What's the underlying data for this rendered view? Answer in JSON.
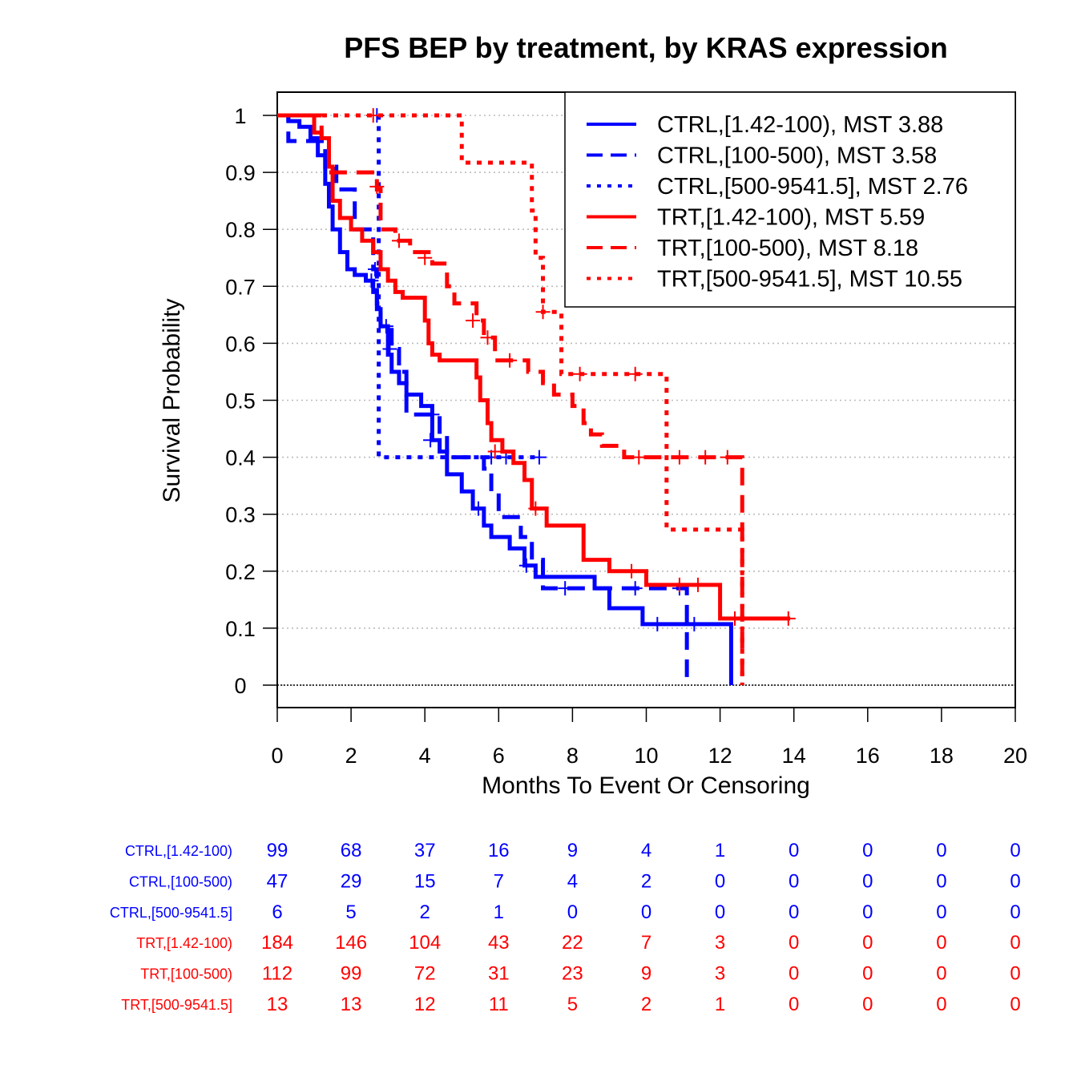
{
  "chart_data": {
    "type": "line",
    "subtype": "kaplan-meier",
    "title": "PFS BEP by treatment, by KRAS expression",
    "xlabel": "Months To Event Or Censoring",
    "ylabel": "Survival Probability",
    "xlim": [
      0,
      20
    ],
    "ylim": [
      0,
      1
    ],
    "x_ticks": [
      0,
      2,
      4,
      6,
      8,
      10,
      12,
      14,
      16,
      18,
      20
    ],
    "y_ticks": [
      0,
      0.1,
      0.2,
      0.3,
      0.4,
      0.5,
      0.6,
      0.7,
      0.8,
      0.9,
      1
    ],
    "y_tick_labels": [
      "0",
      "0.1",
      "0.2",
      "0.3",
      "0.4",
      "0.5",
      "0.6",
      "0.7",
      "0.8",
      "0.9",
      "1"
    ],
    "grid": "horizontal dotted",
    "legend_position": "top-right",
    "colors": {
      "ctrl": "#0000ff",
      "trt": "#ff0000",
      "grid": "#bbbbbb"
    },
    "series": [
      {
        "name": "CTRL,[1.42-100), MST 3.88",
        "risk_label": "CTRL,[1.42-100)",
        "color": "#0000ff",
        "dash": "solid",
        "steps": [
          [
            0,
            1
          ],
          [
            0.3,
            0.99
          ],
          [
            0.6,
            0.98
          ],
          [
            0.9,
            0.96
          ],
          [
            1.1,
            0.93
          ],
          [
            1.3,
            0.88
          ],
          [
            1.4,
            0.84
          ],
          [
            1.5,
            0.8
          ],
          [
            1.7,
            0.76
          ],
          [
            1.9,
            0.73
          ],
          [
            2.1,
            0.72
          ],
          [
            2.4,
            0.71
          ],
          [
            2.6,
            0.69
          ],
          [
            2.7,
            0.66
          ],
          [
            2.8,
            0.63
          ],
          [
            3.0,
            0.58
          ],
          [
            3.1,
            0.55
          ],
          [
            3.3,
            0.53
          ],
          [
            3.5,
            0.51
          ],
          [
            3.9,
            0.49
          ],
          [
            4.2,
            0.43
          ],
          [
            4.4,
            0.41
          ],
          [
            4.6,
            0.37
          ],
          [
            5.0,
            0.34
          ],
          [
            5.3,
            0.31
          ],
          [
            5.6,
            0.28
          ],
          [
            5.8,
            0.26
          ],
          [
            6.3,
            0.24
          ],
          [
            6.7,
            0.21
          ],
          [
            7.0,
            0.19
          ],
          [
            8.6,
            0.17
          ],
          [
            9.0,
            0.135
          ],
          [
            9.9,
            0.107
          ],
          [
            12.3,
            0
          ]
        ],
        "end": 12.3,
        "censors": [
          [
            2.55,
            0.71
          ],
          [
            2.95,
            0.63
          ],
          [
            4.15,
            0.43
          ],
          [
            5.45,
            0.31
          ],
          [
            6.75,
            0.21
          ],
          [
            9.7,
            0.17
          ],
          [
            10.3,
            0.107
          ],
          [
            11.3,
            0.107
          ]
        ]
      },
      {
        "name": "CTRL,[100-500), MST 3.58",
        "risk_label": "CTRL,[100-500)",
        "color": "#0000ff",
        "dash": "dashed",
        "steps": [
          [
            0,
            1
          ],
          [
            0.3,
            0.955
          ],
          [
            0.9,
            0.955
          ],
          [
            1.3,
            0.91
          ],
          [
            1.6,
            0.87
          ],
          [
            2.1,
            0.8
          ],
          [
            2.6,
            0.73
          ],
          [
            2.7,
            0.67
          ],
          [
            2.8,
            0.63
          ],
          [
            3.1,
            0.59
          ],
          [
            3.3,
            0.55
          ],
          [
            3.5,
            0.475
          ],
          [
            4.4,
            0.44
          ],
          [
            4.6,
            0.4
          ],
          [
            5.6,
            0.38
          ],
          [
            5.8,
            0.34
          ],
          [
            6.0,
            0.295
          ],
          [
            6.6,
            0.26
          ],
          [
            6.9,
            0.22
          ],
          [
            7.2,
            0.17
          ],
          [
            11.1,
            0
          ]
        ],
        "end": 11.1,
        "censors": [
          [
            2.65,
            0.73
          ],
          [
            3.05,
            0.59
          ],
          [
            4.2,
            0.475
          ],
          [
            5.8,
            0.4
          ],
          [
            7.8,
            0.17
          ],
          [
            10.9,
            0.17
          ]
        ]
      },
      {
        "name": "CTRL,[500-9541.5], MST 2.76",
        "risk_label": "CTRL,[500-9541.5]",
        "color": "#0000ff",
        "dash": "dotted",
        "steps": [
          [
            0,
            1
          ],
          [
            2.6,
            1
          ],
          [
            2.75,
            0.4
          ]
        ],
        "end": 7.1,
        "censors": [
          [
            2.7,
            1
          ],
          [
            6.2,
            0.4
          ],
          [
            7.1,
            0.4
          ]
        ]
      },
      {
        "name": "TRT,[1.42-100), MST 5.59",
        "risk_label": "TRT,[1.42-100)",
        "color": "#ff0000",
        "dash": "solid",
        "steps": [
          [
            0,
            1
          ],
          [
            0.5,
            1
          ],
          [
            1.0,
            0.97
          ],
          [
            1.2,
            0.96
          ],
          [
            1.4,
            0.91
          ],
          [
            1.5,
            0.85
          ],
          [
            1.7,
            0.82
          ],
          [
            2.0,
            0.8
          ],
          [
            2.3,
            0.78
          ],
          [
            2.6,
            0.76
          ],
          [
            2.8,
            0.73
          ],
          [
            3.0,
            0.71
          ],
          [
            3.2,
            0.69
          ],
          [
            3.4,
            0.68
          ],
          [
            4.0,
            0.64
          ],
          [
            4.1,
            0.6
          ],
          [
            4.2,
            0.58
          ],
          [
            4.4,
            0.57
          ],
          [
            5.4,
            0.54
          ],
          [
            5.5,
            0.5
          ],
          [
            5.7,
            0.46
          ],
          [
            5.8,
            0.43
          ],
          [
            6.1,
            0.41
          ],
          [
            6.4,
            0.39
          ],
          [
            6.7,
            0.36
          ],
          [
            6.9,
            0.31
          ],
          [
            7.3,
            0.28
          ],
          [
            8.3,
            0.22
          ],
          [
            9.0,
            0.2
          ],
          [
            10.0,
            0.176
          ],
          [
            12.0,
            0.117
          ]
        ],
        "end": 13.9,
        "censors": [
          [
            5.9,
            0.41
          ],
          [
            7.0,
            0.31
          ],
          [
            9.6,
            0.2
          ],
          [
            10.9,
            0.176
          ],
          [
            11.4,
            0.176
          ],
          [
            12.4,
            0.117
          ],
          [
            13.85,
            0.117
          ]
        ]
      },
      {
        "name": "TRT,[100-500), MST 8.18",
        "risk_label": "TRT,[100-500)",
        "color": "#ff0000",
        "dash": "dashed",
        "steps": [
          [
            0,
            1
          ],
          [
            0.5,
            1
          ],
          [
            1.2,
            0.96
          ],
          [
            1.4,
            0.9
          ],
          [
            2.0,
            0.9
          ],
          [
            2.7,
            0.87
          ],
          [
            2.8,
            0.8
          ],
          [
            3.2,
            0.78
          ],
          [
            3.6,
            0.76
          ],
          [
            4.2,
            0.74
          ],
          [
            4.6,
            0.7
          ],
          [
            4.8,
            0.67
          ],
          [
            5.4,
            0.64
          ],
          [
            5.6,
            0.61
          ],
          [
            5.9,
            0.57
          ],
          [
            6.8,
            0.55
          ],
          [
            7.2,
            0.53
          ],
          [
            7.5,
            0.51
          ],
          [
            8.0,
            0.49
          ],
          [
            8.3,
            0.46
          ],
          [
            8.5,
            0.44
          ],
          [
            8.8,
            0.42
          ],
          [
            9.4,
            0.4
          ],
          [
            12.6,
            0
          ]
        ],
        "end": 12.6,
        "censors": [
          [
            2.7,
            0.875
          ],
          [
            3.3,
            0.78
          ],
          [
            4.0,
            0.75
          ],
          [
            5.3,
            0.64
          ],
          [
            5.7,
            0.61
          ],
          [
            6.3,
            0.57
          ],
          [
            9.8,
            0.4
          ],
          [
            10.9,
            0.4
          ],
          [
            11.6,
            0.4
          ],
          [
            12.2,
            0.4
          ]
        ]
      },
      {
        "name": "TRT,[500-9541.5], MST 10.55",
        "risk_label": "TRT,[500-9541.5]",
        "color": "#ff0000",
        "dash": "dotted",
        "steps": [
          [
            0,
            1
          ],
          [
            5.0,
            0.917
          ],
          [
            6.9,
            0.833
          ],
          [
            7.0,
            0.75
          ],
          [
            7.2,
            0.655
          ],
          [
            7.7,
            0.546
          ],
          [
            10.55,
            0.273
          ],
          [
            12.6,
            0
          ]
        ],
        "end": 12.6,
        "censors": [
          [
            2.6,
            1
          ],
          [
            7.2,
            0.655
          ],
          [
            8.2,
            0.546
          ],
          [
            9.7,
            0.546
          ]
        ]
      }
    ],
    "risk_table": {
      "times": [
        0,
        2,
        4,
        6,
        8,
        10,
        12,
        14,
        16,
        18,
        20
      ],
      "rows": [
        {
          "label": "CTRL,[1.42-100)",
          "color": "#0000ff",
          "values": [
            "99",
            "68",
            "37",
            "16",
            "9",
            "4",
            "1",
            "0",
            "0",
            "0",
            "0"
          ]
        },
        {
          "label": "CTRL,[100-500)",
          "color": "#0000ff",
          "values": [
            "47",
            "29",
            "15",
            "7",
            "4",
            "2",
            "0",
            "0",
            "0",
            "0",
            "0"
          ]
        },
        {
          "label": "CTRL,[500-9541.5]",
          "color": "#0000ff",
          "values": [
            "6",
            "5",
            "2",
            "1",
            "0",
            "0",
            "0",
            "0",
            "0",
            "0",
            "0"
          ]
        },
        {
          "label": "TRT,[1.42-100)",
          "color": "#ff0000",
          "values": [
            "184",
            "146",
            "104",
            "43",
            "22",
            "7",
            "3",
            "0",
            "0",
            "0",
            "0"
          ]
        },
        {
          "label": "TRT,[100-500)",
          "color": "#ff0000",
          "values": [
            "112",
            "99",
            "72",
            "31",
            "23",
            "9",
            "3",
            "0",
            "0",
            "0",
            "0"
          ]
        },
        {
          "label": "TRT,[500-9541.5]",
          "color": "#ff0000",
          "values": [
            "13",
            "13",
            "12",
            "11",
            "5",
            "2",
            "1",
            "0",
            "0",
            "0",
            "0"
          ]
        }
      ]
    }
  }
}
